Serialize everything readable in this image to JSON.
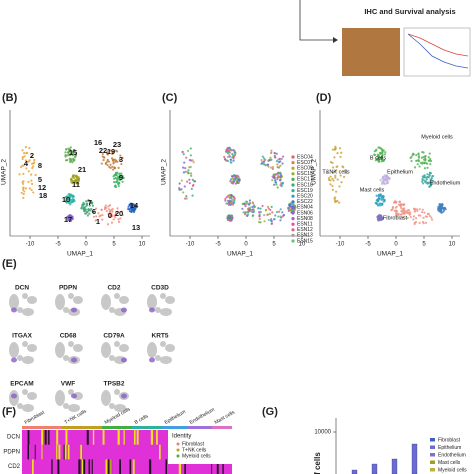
{
  "top": {
    "title": "IHC and Survival analysis"
  },
  "panels": {
    "b": "(B)",
    "c": "(C)",
    "d": "(D)",
    "e": "(E)",
    "f": "(F)",
    "g": "(G)"
  },
  "umap": {
    "x_label": "UMAP_1",
    "y_label": "UMAP_2",
    "xticks": [
      "-10",
      "-5",
      "0",
      "5",
      "10"
    ]
  },
  "clusters": [
    "16",
    "23",
    "22",
    "19",
    "3",
    "2",
    "4",
    "8",
    "5",
    "12",
    "18",
    "15",
    "9",
    "17",
    "7",
    "14",
    "1",
    "0",
    "20",
    "13",
    "6",
    "10",
    "11",
    "21"
  ],
  "samples": [
    "ESC04",
    "ESC07",
    "ESC09",
    "ESC15",
    "ESC17",
    "ESC18",
    "ESC19",
    "ESC20",
    "ESC22",
    "ESN04",
    "ESN06",
    "ESN08",
    "ESN11",
    "ESN12",
    "ESN13",
    "ESN15"
  ],
  "cell_types": [
    "Myeloid cells",
    "B cells",
    "Epithelium",
    "Endothelium",
    "T&NK cells",
    "Mast cells",
    "Fibroblast"
  ],
  "genes": [
    "DCN",
    "PDPN",
    "CD2",
    "CD3D",
    "ITGAX",
    "CD68",
    "CD79A",
    "KRT5",
    "EPCAM",
    "VWF",
    "TPSB2"
  ],
  "heatmap": {
    "columns": [
      "Fibroblast",
      "T+NK cells",
      "Myeloid cells",
      "B cells",
      "Epithelium",
      "Endothelium",
      "Mast cells"
    ],
    "rows": [
      "DCN",
      "PDPN",
      "CD2"
    ],
    "legend_title": "Identity",
    "legend": [
      "Fibroblast",
      "T+NK cells",
      "Myeloid cells"
    ]
  },
  "bar_panel": {
    "ytick": "10000",
    "y_label": "of cells",
    "legend": [
      "Fibroblast",
      "Epithelium",
      "Endothelium",
      "Mast cells",
      "Myeloid cells"
    ]
  }
}
